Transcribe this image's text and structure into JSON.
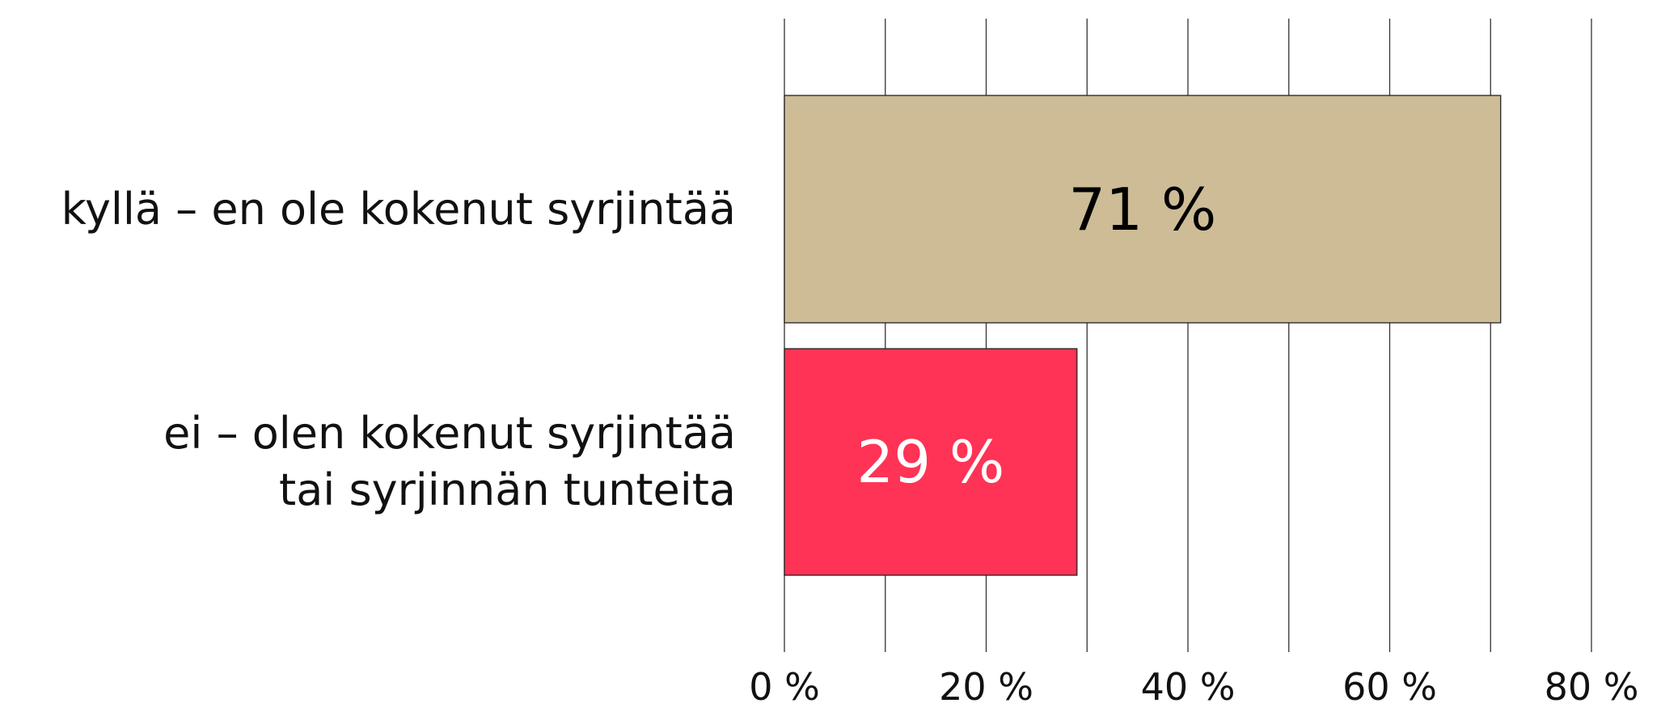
{
  "chart_data": {
    "type": "barh",
    "categories": [
      "kyllä – en ole kokenut syrjintää",
      "ei – olen kokenut syrjintää\ntai syrjinnän tunteita"
    ],
    "values": [
      71,
      29
    ],
    "value_labels": [
      "71 %",
      "29 %"
    ],
    "colors": [
      "#cdbc96",
      "#ff3355"
    ],
    "label_colors": [
      "#000000",
      "#ffffff"
    ],
    "xlim": [
      0,
      80
    ],
    "xticks": [
      {
        "value": 0,
        "label": "0 %"
      },
      {
        "value": 20,
        "label": "20 %"
      },
      {
        "value": 40,
        "label": "40 %"
      },
      {
        "value": 60,
        "label": "60 %"
      },
      {
        "value": 80,
        "label": "80 %"
      }
    ],
    "minor_xticks": [
      10,
      30,
      50,
      70
    ],
    "grid": true
  }
}
